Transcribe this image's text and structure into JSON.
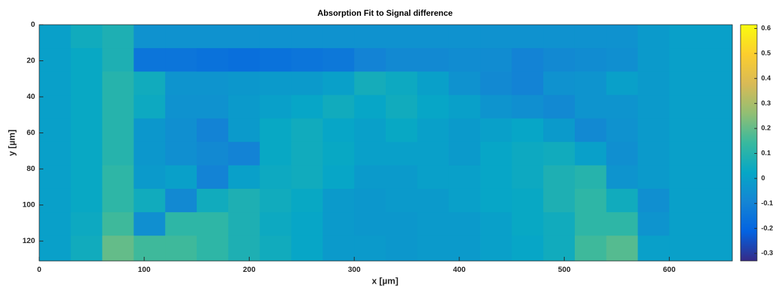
{
  "chart_data": {
    "type": "heatmap",
    "title": "Absorption Fit to Signal difference",
    "xlabel": "x [µm]",
    "ylabel": "y [µm]",
    "colormap": "parula",
    "x": [
      15,
      45,
      75,
      105,
      135,
      165,
      195,
      225,
      255,
      285,
      315,
      345,
      375,
      405,
      435,
      465,
      495,
      525,
      555,
      585,
      615,
      645
    ],
    "y": [
      6.5,
      19.5,
      32.5,
      45.5,
      58.5,
      71.5,
      84.5,
      97.5,
      110.5,
      123.5
    ],
    "z": [
      [
        0,
        0.05,
        0.08,
        -0.05,
        -0.05,
        -0.05,
        -0.05,
        -0.05,
        -0.05,
        -0.05,
        -0.05,
        -0.05,
        -0.05,
        -0.05,
        -0.05,
        -0.05,
        -0.05,
        -0.05,
        -0.05,
        -0.02,
        0,
        0
      ],
      [
        0,
        0.03,
        0.08,
        -0.15,
        -0.15,
        -0.16,
        -0.17,
        -0.16,
        -0.15,
        -0.14,
        -0.1,
        -0.08,
        -0.08,
        -0.07,
        -0.07,
        -0.1,
        -0.08,
        -0.07,
        -0.06,
        -0.02,
        0,
        0
      ],
      [
        0,
        0.03,
        0.1,
        0.05,
        -0.04,
        -0.04,
        -0.03,
        -0.02,
        -0.02,
        0,
        0.06,
        0.04,
        0,
        -0.05,
        -0.08,
        -0.1,
        -0.05,
        -0.04,
        0,
        -0.02,
        0,
        0
      ],
      [
        0,
        0.03,
        0.1,
        0.04,
        -0.05,
        -0.05,
        -0.02,
        0,
        0.02,
        0.05,
        0.02,
        0.05,
        0.02,
        0,
        -0.04,
        -0.06,
        -0.08,
        -0.04,
        -0.04,
        -0.02,
        0,
        0
      ],
      [
        0,
        0.03,
        0.1,
        -0.03,
        -0.06,
        -0.1,
        -0.02,
        0.03,
        0.05,
        0.02,
        0,
        0.03,
        0,
        -0.02,
        0,
        0.02,
        -0.02,
        -0.08,
        -0.05,
        -0.02,
        0,
        0
      ],
      [
        0,
        0.03,
        0.1,
        -0.03,
        -0.06,
        -0.08,
        -0.1,
        0.03,
        0.05,
        0.03,
        0,
        0,
        0,
        -0.02,
        0.02,
        0.04,
        0.05,
        0,
        -0.06,
        -0.02,
        0,
        0
      ],
      [
        0,
        0.03,
        0.12,
        -0.02,
        0,
        -0.1,
        0,
        0.04,
        0.05,
        0.02,
        -0.02,
        -0.02,
        0,
        0,
        0.02,
        0.04,
        0.08,
        0.1,
        -0.04,
        -0.02,
        0,
        0
      ],
      [
        0,
        0.03,
        0.12,
        0.05,
        -0.08,
        0.05,
        0.08,
        0.05,
        0.03,
        -0.02,
        -0.03,
        -0.02,
        -0.02,
        0,
        0.02,
        0.03,
        0.08,
        0.12,
        0.05,
        -0.06,
        0,
        0
      ],
      [
        0,
        0.04,
        0.15,
        -0.06,
        0.12,
        0.12,
        0.08,
        0.04,
        0.02,
        -0.02,
        -0.03,
        -0.03,
        -0.02,
        -0.02,
        0,
        0.03,
        0.05,
        0.12,
        0.12,
        -0.04,
        0,
        0
      ],
      [
        0,
        0.05,
        0.2,
        0.15,
        0.15,
        0.12,
        0.08,
        0.05,
        0.02,
        -0.02,
        -0.02,
        -0.03,
        -0.02,
        -0.02,
        0,
        0.02,
        0.05,
        0.15,
        0.18,
        0,
        0,
        0
      ]
    ],
    "xlim": [
      0,
      660
    ],
    "ylim": [
      0,
      131
    ],
    "y_reversed": true,
    "xticks": [
      0,
      100,
      200,
      300,
      400,
      500,
      600
    ],
    "yticks": [
      0,
      20,
      40,
      60,
      80,
      100,
      120
    ],
    "clim": [
      -0.33,
      0.615
    ],
    "cticks": [
      -0.3,
      -0.2,
      -0.1,
      0,
      0.1,
      0.2,
      0.3,
      0.4,
      0.5,
      0.6
    ]
  }
}
